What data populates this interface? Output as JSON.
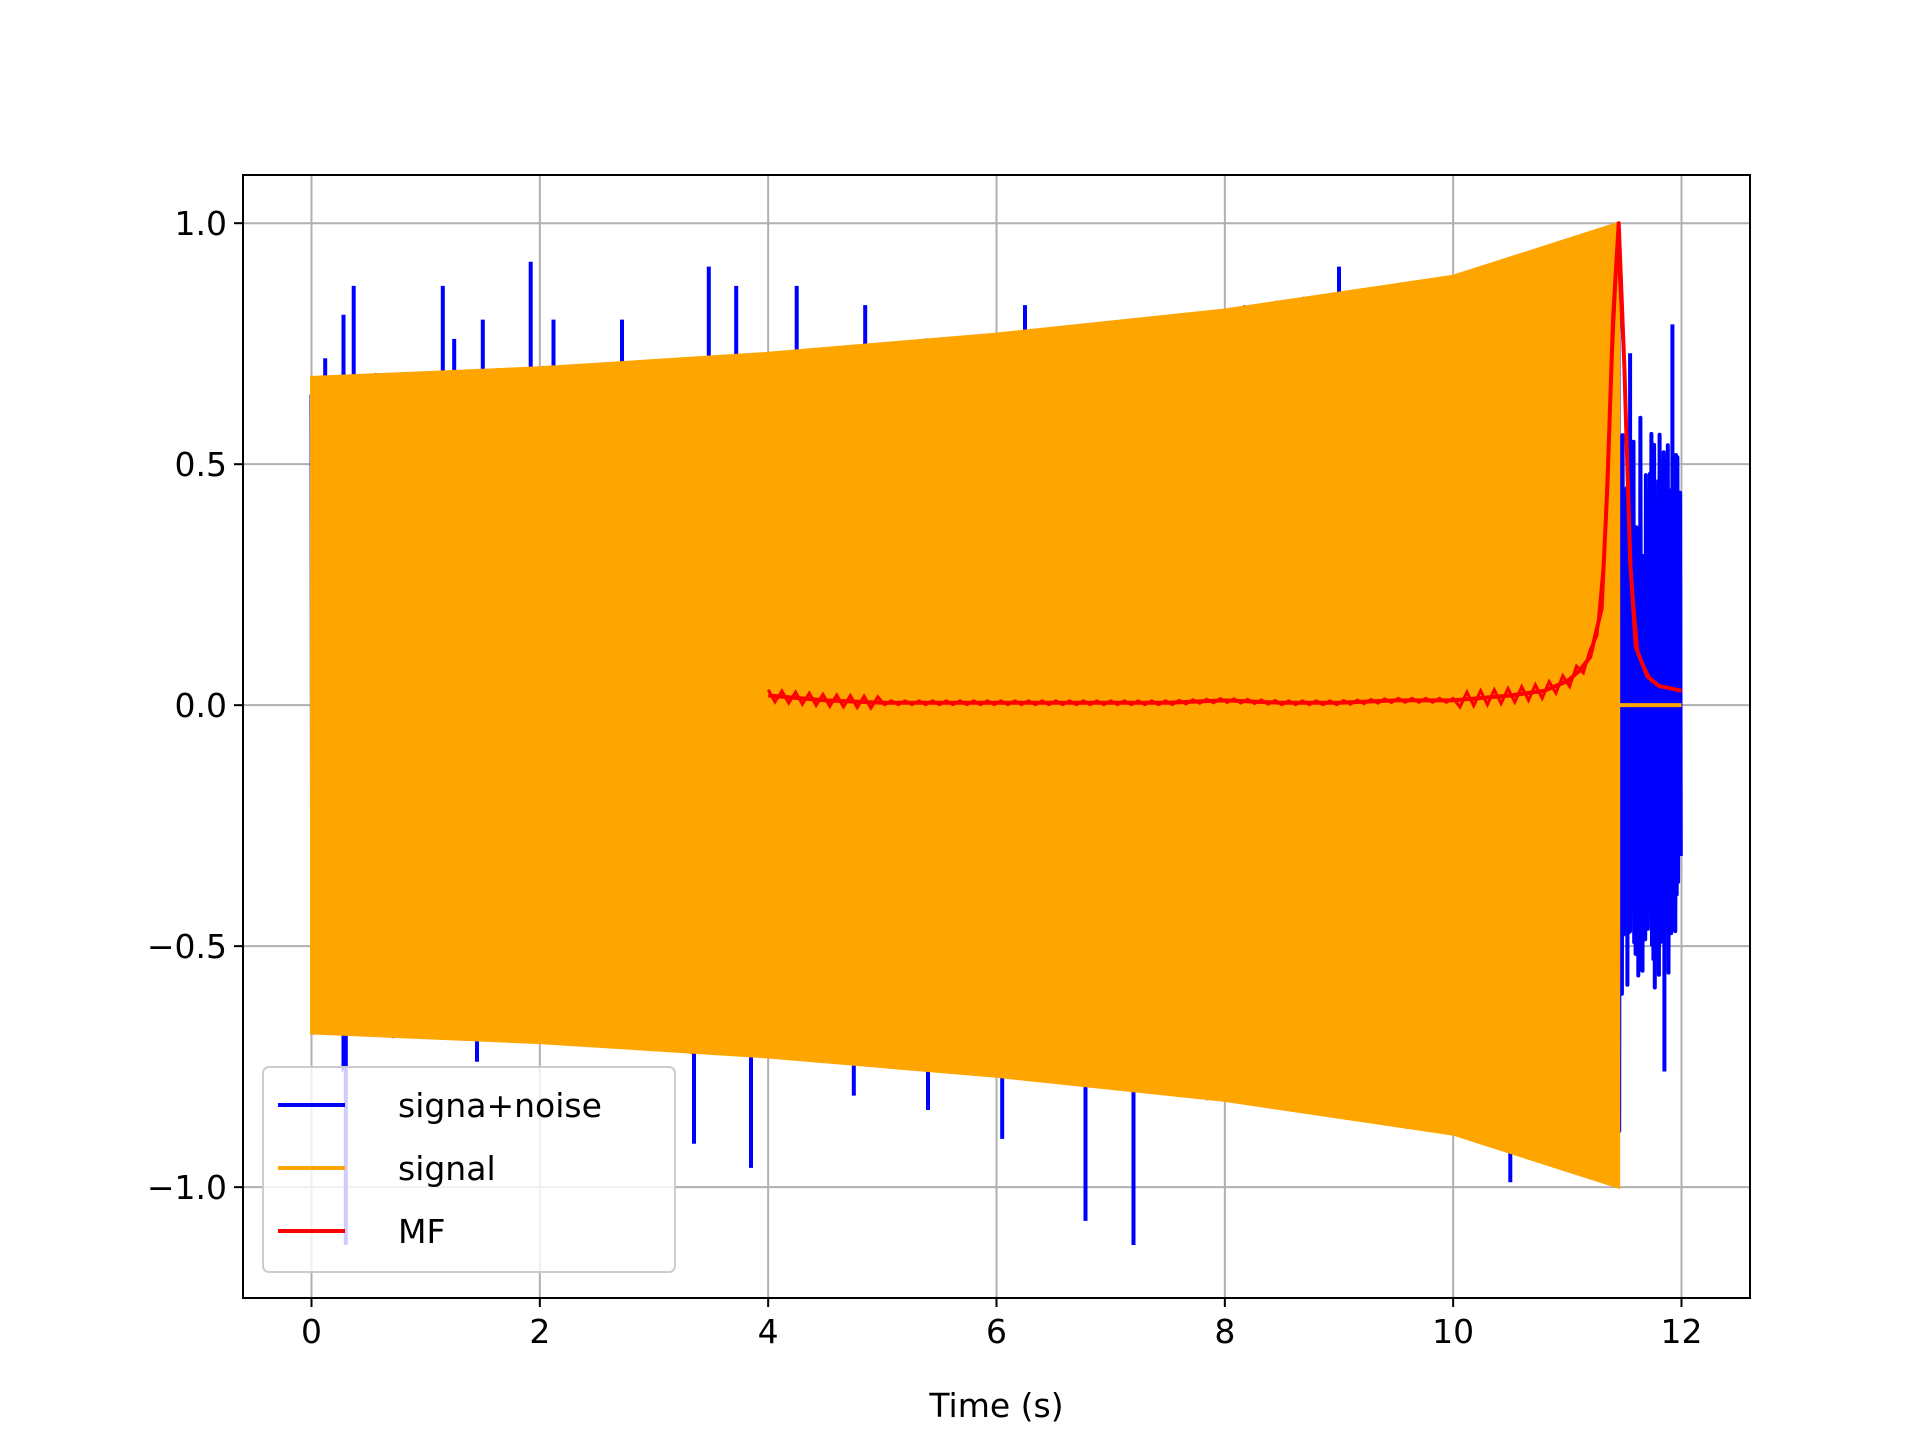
{
  "chart_data": {
    "type": "line",
    "title": "",
    "xlabel": "Time (s)",
    "ylabel": "",
    "xlim": [
      -0.6,
      12.6
    ],
    "ylim": [
      -1.23,
      1.1
    ],
    "xticks": [
      0,
      2,
      4,
      6,
      8,
      10,
      12
    ],
    "yticks": [
      1.0,
      0.5,
      0.0,
      -0.5,
      -1.0
    ],
    "xtick_labels": [
      "0",
      "2",
      "4",
      "6",
      "8",
      "10",
      "12"
    ],
    "ytick_labels": [
      "1.0",
      "0.5",
      "0.0",
      "−0.5",
      "−1.0"
    ],
    "grid": true,
    "legend_position": "lower-left",
    "series": [
      {
        "name": "signa+noise",
        "color": "#0000ff",
        "x_range": [
          0,
          12
        ],
        "peaks": [
          {
            "x": 0.12,
            "y": 0.72
          },
          {
            "x": 0.28,
            "y": 0.81
          },
          {
            "x": 0.37,
            "y": 0.87
          },
          {
            "x": 1.15,
            "y": 0.87
          },
          {
            "x": 1.25,
            "y": 0.76
          },
          {
            "x": 1.5,
            "y": 0.8
          },
          {
            "x": 1.92,
            "y": 0.92
          },
          {
            "x": 2.12,
            "y": 0.8
          },
          {
            "x": 2.72,
            "y": 0.8
          },
          {
            "x": 3.48,
            "y": 0.91
          },
          {
            "x": 3.72,
            "y": 0.87
          },
          {
            "x": 4.25,
            "y": 0.87
          },
          {
            "x": 4.85,
            "y": 0.83
          },
          {
            "x": 6.25,
            "y": 0.83
          },
          {
            "x": 9.0,
            "y": 0.91
          },
          {
            "x": 11.55,
            "y": 0.73
          },
          {
            "x": 11.92,
            "y": 0.79
          }
        ],
        "troughs": [
          {
            "x": 0.28,
            "y": -0.76
          },
          {
            "x": 0.3,
            "y": -1.12
          },
          {
            "x": 1.45,
            "y": -0.74
          },
          {
            "x": 3.35,
            "y": -0.91
          },
          {
            "x": 3.85,
            "y": -0.96
          },
          {
            "x": 4.75,
            "y": -0.81
          },
          {
            "x": 5.4,
            "y": -0.84
          },
          {
            "x": 6.05,
            "y": -0.9
          },
          {
            "x": 6.78,
            "y": -1.07
          },
          {
            "x": 7.2,
            "y": -1.12
          },
          {
            "x": 10.5,
            "y": -0.99
          },
          {
            "x": 11.85,
            "y": -0.76
          }
        ]
      },
      {
        "name": "signal",
        "color": "#ffa500",
        "x_range": [
          0,
          11.45
        ],
        "envelope": [
          {
            "x": 0,
            "y": 0.68
          },
          {
            "x": 2,
            "y": 0.7
          },
          {
            "x": 4,
            "y": 0.73
          },
          {
            "x": 6,
            "y": 0.77
          },
          {
            "x": 8,
            "y": 0.82
          },
          {
            "x": 10,
            "y": 0.89
          },
          {
            "x": 11.45,
            "y": 1.0
          }
        ]
      },
      {
        "name": "MF",
        "color": "#ff0000",
        "x": [
          4.0,
          4.5,
          5.0,
          5.5,
          6.0,
          6.5,
          7.0,
          7.5,
          8.0,
          8.5,
          9.0,
          9.5,
          10.0,
          10.5,
          10.8,
          11.0,
          11.1,
          11.2,
          11.3,
          11.35,
          11.4,
          11.45,
          11.5,
          11.55,
          11.6,
          11.7,
          11.8,
          12.0
        ],
        "values": [
          0.02,
          0.01,
          0.005,
          0.005,
          0.005,
          0.005,
          0.005,
          0.005,
          0.01,
          0.005,
          0.005,
          0.01,
          0.01,
          0.02,
          0.03,
          0.05,
          0.07,
          0.1,
          0.2,
          0.45,
          0.8,
          1.0,
          0.7,
          0.3,
          0.12,
          0.06,
          0.04,
          0.03
        ]
      }
    ]
  }
}
